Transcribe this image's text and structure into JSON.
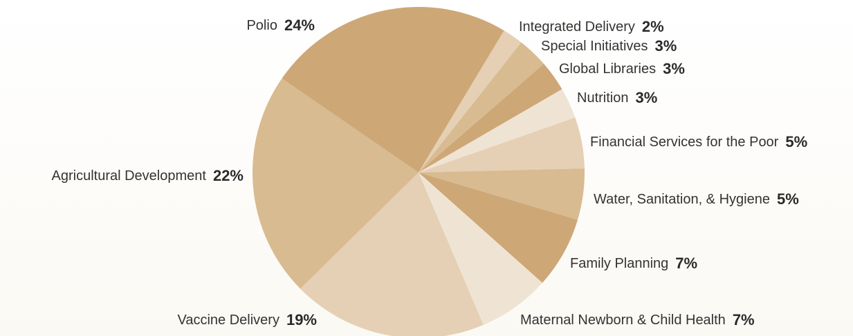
{
  "chart_data": {
    "type": "pie",
    "categories": [
      "Integrated Delivery",
      "Special Initiatives",
      "Global Libraries",
      "Nutrition",
      "Financial Services for the Poor",
      "Water, Sanitation, & Hygiene",
      "Family Planning",
      "Maternal Newborn & Child Health",
      "Vaccine Delivery",
      "Agricultural Development",
      "Polio"
    ],
    "values": [
      2,
      3,
      3,
      3,
      5,
      5,
      7,
      7,
      19,
      22,
      24
    ],
    "value_labels": [
      "2%",
      "3%",
      "3%",
      "3%",
      "5%",
      "5%",
      "7%",
      "7%",
      "19%",
      "22%",
      "24%"
    ],
    "colors": [
      "#e5d0b5",
      "#d9bb91",
      "#cda776",
      "#efe4d4",
      "#e5d0b5",
      "#d9bb91",
      "#cda776",
      "#efe4d4",
      "#e5d0b5",
      "#d9bb91",
      "#cda776"
    ]
  }
}
